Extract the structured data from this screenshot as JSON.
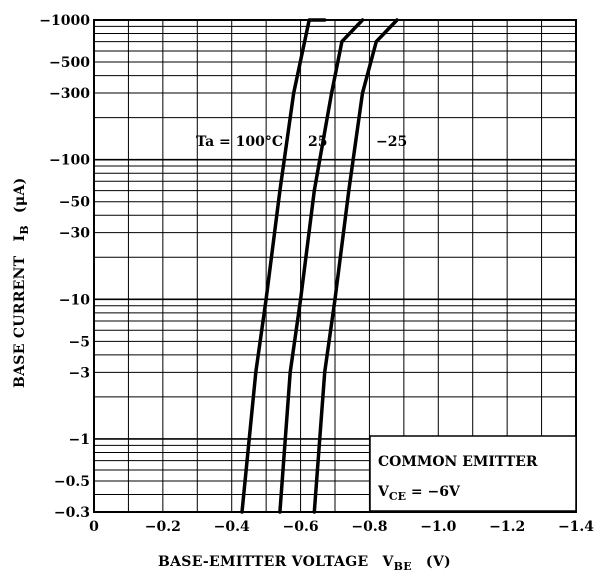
{
  "chart_data": {
    "type": "line",
    "xlabel": "BASE-EMITTER VOLTAGE",
    "xsymbol": "V",
    "xsymbol_sub": "BE",
    "xunit": "(V)",
    "ylabel": "BASE CURRENT",
    "ysymbol": "I",
    "ysymbol_sub": "B",
    "yunit": "(μA)",
    "xlim": [
      0,
      -1.4
    ],
    "ylim": [
      -0.3,
      -1000
    ],
    "y_scale": "log",
    "grid": true,
    "x_ticks": [
      "0",
      "−0.2",
      "−0.4",
      "−0.6",
      "−0.8",
      "−1.0",
      "−1.2",
      "−1.4"
    ],
    "y_ticks": [
      "−1000",
      "−500",
      "−300",
      "−100",
      "−50",
      "−30",
      "−10",
      "−5",
      "−3",
      "−1",
      "−0.5",
      "−0.3"
    ],
    "series": [
      {
        "name": "Ta = 100°C",
        "x": [
          -0.43,
          -0.47,
          -0.5,
          -0.54,
          -0.58,
          -0.625,
          -0.67
        ],
        "y": [
          -0.3,
          -3,
          -10,
          -60,
          -300,
          -1000,
          -1000
        ]
      },
      {
        "name": "25",
        "x": [
          -0.54,
          -0.57,
          -0.6,
          -0.64,
          -0.69,
          -0.72,
          -0.78
        ],
        "y": [
          -0.3,
          -3,
          -10,
          -60,
          -300,
          -700,
          -1000
        ]
      },
      {
        "name": "−25",
        "x": [
          -0.64,
          -0.67,
          -0.7,
          -0.74,
          -0.78,
          -0.82,
          -0.88
        ],
        "y": [
          -0.3,
          -3,
          -10,
          -60,
          -300,
          -700,
          -1000
        ]
      }
    ],
    "annotations": {
      "ta_label": "Ta = 100°C",
      "label_25": "25",
      "label_m25": "−25",
      "legend_line1": "COMMON EMITTER",
      "legend_line2_pre": "V",
      "legend_line2_sub": "CE",
      "legend_line2_post": " = −6V"
    }
  }
}
